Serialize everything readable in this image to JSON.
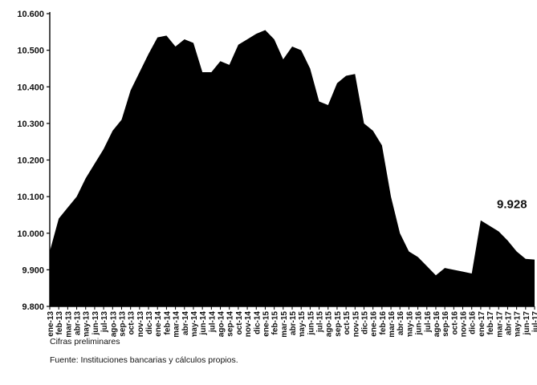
{
  "chart_data": {
    "type": "area",
    "title": "",
    "xlabel": "",
    "ylabel": "",
    "ylim": [
      9800,
      10600
    ],
    "yticks": [
      9800,
      9900,
      10000,
      10100,
      10200,
      10300,
      10400,
      10500,
      10600
    ],
    "ytick_labels": [
      "9.800",
      "9.900",
      "10.000",
      "10.100",
      "10.200",
      "10.300",
      "10.400",
      "10.500",
      "10.600"
    ],
    "grid": false,
    "legend": "none",
    "fill_color": "#000000",
    "categories": [
      "ene-13",
      "feb-13",
      "mar-13",
      "abr-13",
      "may-13",
      "jun-13",
      "jul-13",
      "ago-13",
      "sep-13",
      "oct-13",
      "nov-13",
      "dic-13",
      "ene-14",
      "feb-14",
      "mar-14",
      "abr-14",
      "may-14",
      "jun-14",
      "jul-14",
      "ago-14",
      "sep-14",
      "oct-14",
      "nov-14",
      "dic-14",
      "ene-15",
      "feb-15",
      "mar-15",
      "abr-15",
      "may-15",
      "jun-15",
      "jul-15",
      "ago-15",
      "sep-15",
      "oct-15",
      "nov-15",
      "dic-15",
      "ene-16",
      "feb-16",
      "mar-16",
      "abr-16",
      "may-16",
      "jun-16",
      "jul-16",
      "ago-16",
      "sep-16",
      "oct-16",
      "nov-16",
      "dic-16",
      "ene-17",
      "feb-17",
      "mar-17",
      "abr-17",
      "may-17",
      "jun-17",
      "jul-17"
    ],
    "values": [
      9950,
      10040,
      10070,
      10100,
      10150,
      10190,
      10230,
      10280,
      10310,
      10390,
      10440,
      10490,
      10535,
      10540,
      10510,
      10530,
      10520,
      10440,
      10440,
      10470,
      10460,
      10515,
      10530,
      10545,
      10555,
      10530,
      10475,
      10510,
      10500,
      10450,
      10360,
      10350,
      10410,
      10430,
      10435,
      10300,
      10280,
      10240,
      10100,
      10000,
      9950,
      9935,
      9910,
      9885,
      9905,
      9900,
      9895,
      9890,
      10035,
      10020,
      10005,
      9980,
      9950,
      9930,
      9928
    ],
    "annotations": [
      {
        "index": 54,
        "text": "9.928"
      }
    ]
  },
  "footnotes": {
    "note1": "Cifras preliminares",
    "note2": "Fuente: Instituciones bancarias y cálculos propios."
  }
}
